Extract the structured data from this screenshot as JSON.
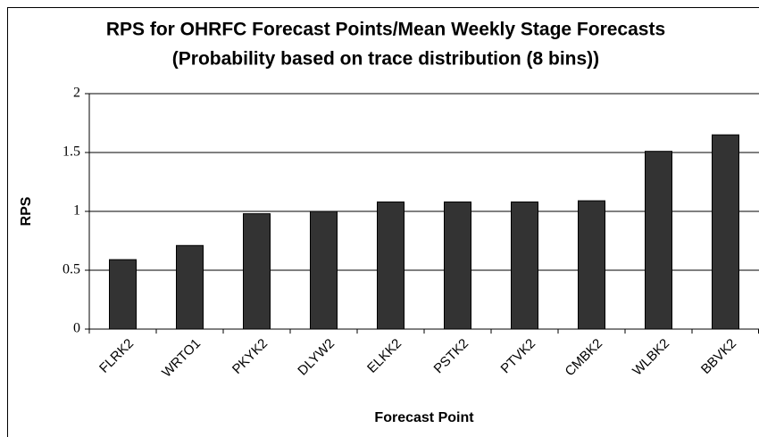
{
  "chart_data": {
    "type": "bar",
    "title": "RPS for OHRFC Forecast Points/Mean Weekly Stage Forecasts",
    "subtitle": "(Probability based on trace distribution (8 bins))",
    "x_label": "Forecast Point",
    "y_label": "RPS",
    "categories": [
      "FLRK2",
      "WRTO1",
      "PKYK2",
      "DLYW2",
      "ELKK2",
      "PSTK2",
      "PTVK2",
      "CMBK2",
      "WLBK2",
      "BBVK2"
    ],
    "values": [
      0.59,
      0.71,
      0.98,
      1.0,
      1.08,
      1.08,
      1.08,
      1.09,
      1.51,
      1.65
    ],
    "color": "#333333",
    "ylim": [
      0,
      2
    ],
    "yticks": [
      0,
      0.5,
      1,
      1.5,
      2
    ],
    "grid": true
  }
}
